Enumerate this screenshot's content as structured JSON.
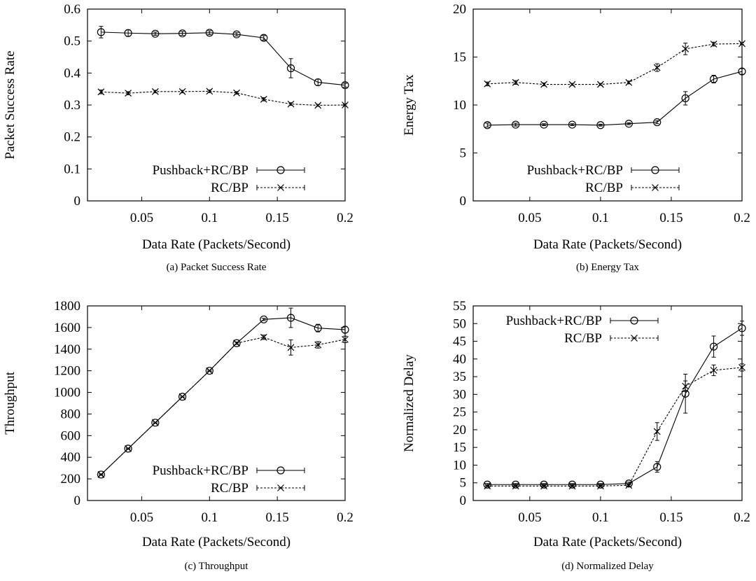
{
  "chart_data": [
    {
      "type": "line",
      "caption": "(a) Packet Success Rate",
      "xlabel": "Data Rate (Packets/Second)",
      "ylabel": "Packet Success Rate",
      "xlim": [
        0.01,
        0.2
      ],
      "ylim": [
        0,
        0.6
      ],
      "xticks": [
        "0.05",
        "0.1",
        "0.15",
        "0.2"
      ],
      "yticks": [
        "0",
        "0.1",
        "0.2",
        "0.3",
        "0.4",
        "0.5",
        "0.6"
      ],
      "legend": "bottom-right",
      "x": [
        0.02,
        0.04,
        0.06,
        0.08,
        0.1,
        0.12,
        0.14,
        0.16,
        0.18,
        0.2
      ],
      "series": [
        {
          "name": "Pushback+RC/BP",
          "marker": "circle",
          "dash": "solid",
          "values": [
            0.528,
            0.525,
            0.523,
            0.524,
            0.526,
            0.521,
            0.51,
            0.415,
            0.371,
            0.362
          ],
          "errors": [
            0.018,
            0.01,
            0.005,
            0.006,
            0.006,
            0.005,
            0.007,
            0.03,
            0.01,
            0.006
          ]
        },
        {
          "name": "RC/BP",
          "marker": "x",
          "dash": "dashed",
          "values": [
            0.341,
            0.337,
            0.342,
            0.342,
            0.343,
            0.338,
            0.318,
            0.303,
            0.299,
            0.3
          ],
          "errors": [
            0.006,
            0.005,
            0.004,
            0.004,
            0.004,
            0.004,
            0.005,
            0.004,
            0.003,
            0.003
          ]
        }
      ]
    },
    {
      "type": "line",
      "caption": "(b) Energy Tax",
      "xlabel": "Data Rate (Packets/Second)",
      "ylabel": "Energy Tax",
      "xlim": [
        0.01,
        0.2
      ],
      "ylim": [
        0,
        20
      ],
      "xticks": [
        "0.05",
        "0.1",
        "0.15",
        "0.2"
      ],
      "yticks": [
        "0",
        "5",
        "10",
        "15",
        "20"
      ],
      "legend": "bottom-right",
      "x": [
        0.02,
        0.04,
        0.06,
        0.08,
        0.1,
        0.12,
        0.14,
        0.16,
        0.18,
        0.2
      ],
      "series": [
        {
          "name": "Pushback+RC/BP",
          "marker": "circle",
          "dash": "solid",
          "values": [
            7.9,
            7.95,
            7.95,
            7.95,
            7.9,
            8.05,
            8.2,
            10.7,
            12.7,
            13.5
          ],
          "errors": [
            0.2,
            0.15,
            0.1,
            0.1,
            0.1,
            0.1,
            0.15,
            0.7,
            0.4,
            0.3
          ]
        },
        {
          "name": "RC/BP",
          "marker": "x",
          "dash": "dashed",
          "values": [
            12.2,
            12.35,
            12.15,
            12.15,
            12.15,
            12.35,
            13.9,
            15.85,
            16.35,
            16.4
          ],
          "errors": [
            0.2,
            0.2,
            0.15,
            0.1,
            0.1,
            0.15,
            0.4,
            0.6,
            0.2,
            0.1
          ]
        }
      ]
    },
    {
      "type": "line",
      "caption": "(c) Throughput",
      "xlabel": "Data Rate (Packets/Second)",
      "ylabel": "Throughput",
      "xlim": [
        0.01,
        0.2
      ],
      "ylim": [
        0,
        1800
      ],
      "xticks": [
        "0.05",
        "0.1",
        "0.15",
        "0.2"
      ],
      "yticks": [
        "0",
        "200",
        "400",
        "600",
        "800",
        "1000",
        "1200",
        "1400",
        "1600",
        "1800"
      ],
      "legend": "bottom-right",
      "x": [
        0.02,
        0.04,
        0.06,
        0.08,
        0.1,
        0.12,
        0.14,
        0.16,
        0.18,
        0.2
      ],
      "series": [
        {
          "name": "Pushback+RC/BP",
          "marker": "circle",
          "dash": "solid",
          "values": [
            240,
            480,
            720,
            960,
            1200,
            1455,
            1675,
            1690,
            1595,
            1580
          ],
          "errors": [
            5,
            5,
            5,
            5,
            5,
            10,
            10,
            90,
            35,
            30
          ]
        },
        {
          "name": "RC/BP",
          "marker": "x",
          "dash": "dashed",
          "values": [
            240,
            480,
            720,
            960,
            1200,
            1455,
            1510,
            1415,
            1440,
            1490
          ],
          "errors": [
            5,
            5,
            5,
            5,
            5,
            10,
            20,
            70,
            30,
            30
          ]
        }
      ]
    },
    {
      "type": "line",
      "caption": "(d) Normalized Delay",
      "xlabel": "Data Rate (Packets/Second)",
      "ylabel": "Normalized Delay",
      "xlim": [
        0.01,
        0.2
      ],
      "ylim": [
        0,
        55
      ],
      "xticks": [
        "0.05",
        "0.1",
        "0.15",
        "0.2"
      ],
      "yticks": [
        "0",
        "5",
        "10",
        "15",
        "20",
        "25",
        "30",
        "35",
        "40",
        "45",
        "50",
        "55"
      ],
      "legend": "top-left",
      "x": [
        0.02,
        0.04,
        0.06,
        0.08,
        0.1,
        0.12,
        0.14,
        0.16,
        0.18,
        0.2
      ],
      "series": [
        {
          "name": "Pushback+RC/BP",
          "marker": "circle",
          "dash": "solid",
          "values": [
            4.5,
            4.5,
            4.5,
            4.5,
            4.5,
            4.8,
            9.5,
            30.2,
            43.5,
            48.7
          ],
          "errors": [
            0.3,
            0.3,
            0.3,
            0.3,
            0.3,
            0.4,
            1.5,
            5.5,
            3.0,
            2.0
          ]
        },
        {
          "name": "RC/BP",
          "marker": "x",
          "dash": "dashed",
          "values": [
            4.1,
            4.1,
            4.1,
            4.1,
            4.1,
            4.3,
            19.5,
            32.3,
            36.8,
            37.6
          ],
          "errors": [
            0.2,
            0.2,
            0.2,
            0.2,
            0.2,
            0.3,
            2.5,
            1.5,
            1.5,
            1.0
          ]
        }
      ]
    }
  ]
}
